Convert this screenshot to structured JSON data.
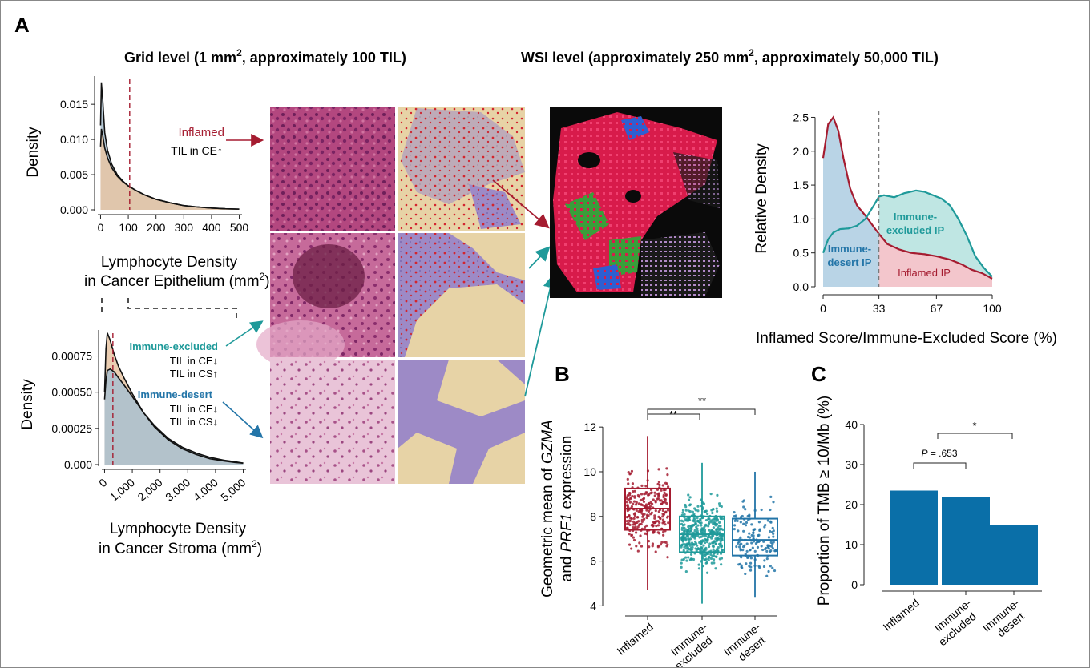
{
  "panel_letters": {
    "a": "A",
    "b": "B",
    "c": "C"
  },
  "headers": {
    "grid_pre": "Grid level (1 mm",
    "grid_sup": "2",
    "grid_post": ", approximately 100 TIL)",
    "wsi_pre": "WSI level (approximately 250 mm",
    "wsi_sup": "2",
    "wsi_post": ", approximately 50,000 TIL)"
  },
  "labels": {
    "inflamed": "Inflamed",
    "til_ce_up": "TIL in CE↑",
    "immune_excluded": "Immune-excluded",
    "til_ce_down": "TIL in CE↓",
    "til_cs_up": "TIL in CS↑",
    "immune_desert": "Immune-desert",
    "til_cs_down": "TIL in CS↓",
    "excl_ip_1": "Immune-",
    "excl_ip_2": "excluded IP",
    "desert_ip_1": "Immune-",
    "desert_ip_2": "desert IP",
    "inflamed_ip": "Inflamed IP",
    "p_label": "P = .653",
    "sig_double": "**",
    "sig_single": "*"
  },
  "colors": {
    "inflamed": "#a51c30",
    "excluded": "#1f9a9a",
    "desert": "#2375a8",
    "blue_fill": "#b9d4e6",
    "teal_fill": "#bfe6e3",
    "pink_fill": "#f3c6cc",
    "bar": "#0a6fa8",
    "density_fill": "#a9bfcf",
    "density_fill2": "#e8c6a5"
  },
  "chart_data": [
    {
      "type": "area",
      "id": "ce-density",
      "xlabel_1": "Lymphocyte Density",
      "xlabel_2": "in Cancer Epithelium (mm",
      "xlabel_sup": "2",
      "xlabel_end": ")",
      "ylabel": "Density",
      "xlim": [
        -10,
        510
      ],
      "ylim": [
        0,
        0.019
      ],
      "xticks": [
        "0",
        "100",
        "200",
        "300",
        "400",
        "500"
      ],
      "xtick_values": [
        0,
        100,
        200,
        300,
        400,
        500
      ],
      "yticks": [
        "0.000",
        "0.005",
        "0.010",
        "0.015"
      ],
      "ytick_values": [
        0,
        0.005,
        0.01,
        0.015
      ],
      "cutoff": 105,
      "series": [
        {
          "x": [
            0,
            3,
            8,
            15,
            25,
            40,
            60,
            80,
            100,
            130,
            160,
            200,
            250,
            300,
            350,
            400,
            450,
            500
          ],
          "y": [
            0.012,
            0.018,
            0.0155,
            0.011,
            0.0085,
            0.0065,
            0.005,
            0.0041,
            0.0034,
            0.0027,
            0.0021,
            0.0015,
            0.001,
            0.0006,
            0.0004,
            0.00025,
            0.00015,
            0.0001
          ]
        },
        {
          "x": [
            0,
            3,
            8,
            15,
            25,
            40,
            60,
            80,
            100,
            130,
            160,
            200,
            250,
            300,
            350,
            400,
            450,
            500
          ],
          "y": [
            0.009,
            0.0115,
            0.0105,
            0.0088,
            0.0074,
            0.006,
            0.0048,
            0.004,
            0.0034,
            0.0027,
            0.0021,
            0.0015,
            0.001,
            0.0006,
            0.0004,
            0.00025,
            0.00015,
            0.0001
          ]
        }
      ]
    },
    {
      "type": "area",
      "id": "cs-density",
      "xlabel_1": "Lymphocyte Density",
      "xlabel_2": "in Cancer Stroma (mm",
      "xlabel_sup": "2",
      "xlabel_end": ")",
      "ylabel": "Density",
      "xlim": [
        -100,
        5100
      ],
      "ylim": [
        0,
        0.00093
      ],
      "xticks": [
        "0",
        "1,000",
        "2,000",
        "3,000",
        "4,000",
        "5,000"
      ],
      "xtick_values": [
        0,
        1000,
        2000,
        3000,
        4000,
        5000
      ],
      "yticks": [
        "0.000",
        "0.00025",
        "0.00050",
        "0.00075"
      ],
      "ytick_values": [
        0,
        0.00025,
        0.0005,
        0.00075
      ],
      "cutoff": 300,
      "series": [
        {
          "x": [
            0,
            50,
            100,
            200,
            350,
            500,
            700,
            1000,
            1400,
            1800,
            2300,
            2800,
            3300,
            3800,
            4300,
            4700,
            5000
          ],
          "y": [
            0.0005,
            0.0008,
            0.00091,
            0.00086,
            0.00076,
            0.00068,
            0.0006,
            0.00049,
            0.00036,
            0.00026,
            0.00017,
            0.00011,
            7e-05,
            4e-05,
            2.5e-05,
            1.5e-05,
            1e-05
          ]
        },
        {
          "x": [
            0,
            50,
            100,
            200,
            350,
            500,
            700,
            1000,
            1400,
            1800,
            2300,
            2800,
            3300,
            3800,
            4300,
            4700,
            5000
          ],
          "y": [
            0.00045,
            0.00058,
            0.00065,
            0.00066,
            0.00064,
            0.0006,
            0.00055,
            0.00047,
            0.00036,
            0.00027,
            0.00018,
            0.00012,
            8e-05,
            5e-05,
            3e-05,
            2e-05,
            1e-05
          ]
        }
      ]
    },
    {
      "type": "line",
      "id": "relative-density",
      "xlabel": "Inflamed Score/Immune-Excluded Score (%)",
      "ylabel": "Relative Density",
      "xlim": [
        0,
        100
      ],
      "ylim": [
        0,
        2.6
      ],
      "xticks": [
        "0",
        "33",
        "67",
        "100"
      ],
      "xtick_values": [
        0,
        33,
        67,
        100
      ],
      "yticks": [
        "0.0",
        "0.5",
        "1.0",
        "1.5",
        "2.0",
        "2.5"
      ],
      "ytick_values": [
        0,
        0.5,
        1.0,
        1.5,
        2.0,
        2.5
      ],
      "cutoff": 33,
      "series": [
        {
          "name": "Inflamed IP",
          "x": [
            0,
            3,
            6,
            9,
            12,
            16,
            20,
            25,
            30,
            33,
            38,
            45,
            52,
            60,
            67,
            75,
            82,
            88,
            94,
            100
          ],
          "y": [
            1.9,
            2.4,
            2.5,
            2.3,
            1.9,
            1.45,
            1.2,
            1.05,
            0.88,
            0.78,
            0.63,
            0.55,
            0.5,
            0.48,
            0.45,
            0.4,
            0.33,
            0.25,
            0.2,
            0.12
          ]
        },
        {
          "name": "Immune-excluded IP",
          "x": [
            0,
            3,
            6,
            10,
            15,
            20,
            25,
            30,
            33,
            36,
            42,
            48,
            55,
            60,
            65,
            70,
            75,
            80,
            85,
            90,
            95,
            100
          ],
          "y": [
            0.5,
            0.7,
            0.8,
            0.85,
            0.86,
            0.9,
            1.0,
            1.2,
            1.33,
            1.35,
            1.32,
            1.38,
            1.42,
            1.4,
            1.35,
            1.3,
            1.2,
            1.0,
            0.75,
            0.45,
            0.28,
            0.15
          ]
        }
      ]
    },
    {
      "type": "scatter",
      "id": "gzma-prf1-boxplot",
      "ylabel_1a": "Geometric mean of ",
      "ylabel_1b": "GZMA",
      "ylabel_2a": "and ",
      "ylabel_2b": "PRF1",
      "ylabel_2c": " expression",
      "categories": [
        "Inflamed",
        "Immune-excluded",
        "Immune-desert"
      ],
      "category_lines": [
        [
          "Inflamed"
        ],
        [
          "Immune-",
          "excluded"
        ],
        [
          "Immune-",
          "desert"
        ]
      ],
      "ylim": [
        3.8,
        12.4
      ],
      "yticks": [
        "4",
        "6",
        "8",
        "10",
        "12"
      ],
      "ytick_values": [
        4,
        6,
        8,
        10,
        12
      ],
      "boxes": [
        {
          "name": "Inflamed",
          "min": 4.7,
          "q1": 7.4,
          "median": 8.35,
          "q3": 9.25,
          "max": 11.6,
          "n": 260
        },
        {
          "name": "Immune-excluded",
          "min": 4.1,
          "q1": 6.4,
          "median": 7.2,
          "q3": 8.0,
          "max": 10.4,
          "n": 420
        },
        {
          "name": "Immune-desert",
          "min": 4.4,
          "q1": 6.25,
          "median": 6.95,
          "q3": 7.9,
          "max": 10.0,
          "n": 150
        }
      ]
    },
    {
      "type": "bar",
      "id": "tmb-proportion",
      "ylabel": "Proportion of TMB ≥ 10/Mb (%)",
      "categories": [
        "Inflamed",
        "Immune-excluded",
        "Immune-desert"
      ],
      "category_lines": [
        [
          "Inflamed"
        ],
        [
          "Immune-",
          "excluded"
        ],
        [
          "Immune-",
          "desert"
        ]
      ],
      "values": [
        23.5,
        22,
        15
      ],
      "ylim": [
        0,
        42
      ],
      "yticks": [
        "0",
        "10",
        "20",
        "30",
        "40"
      ],
      "ytick_values": [
        0,
        10,
        20,
        30,
        40
      ]
    }
  ]
}
